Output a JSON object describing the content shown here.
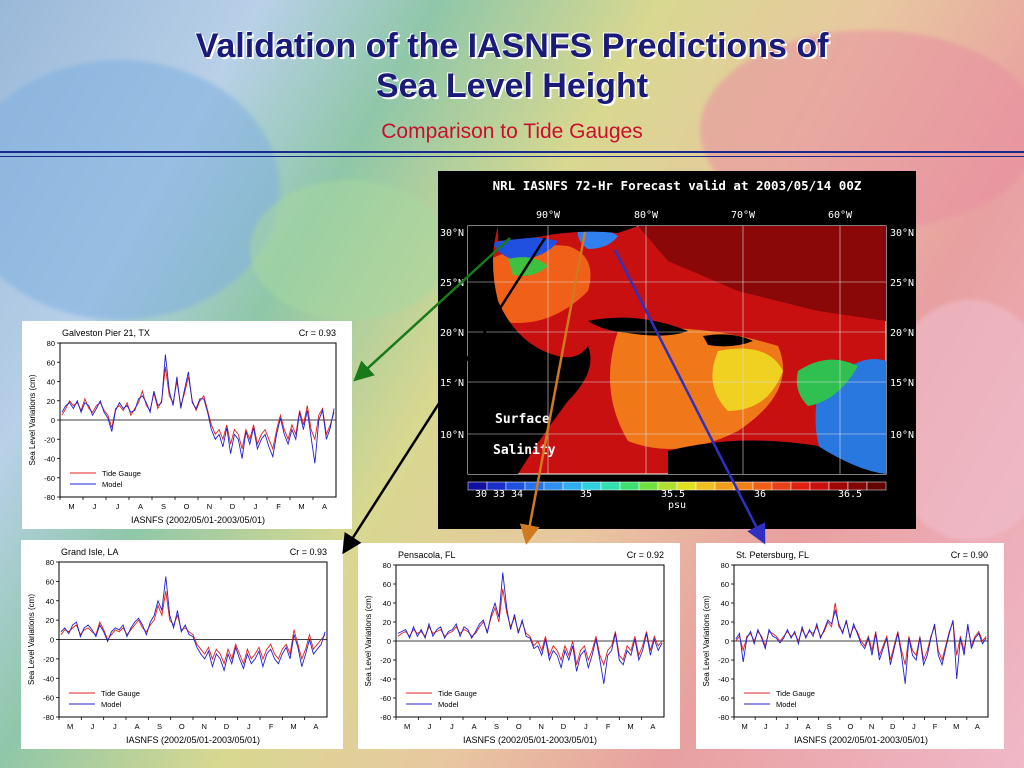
{
  "slide": {
    "title_line1": "Validation of the IASNFS Predictions of",
    "title_line2": "Sea Level Height",
    "subtitle": "Comparison to Tide Gauges"
  },
  "map": {
    "title": "NRL IASNFS 72-Hr Forecast valid at 2003/05/14 00Z",
    "lon_labels": [
      "90°W",
      "80°W",
      "70°W",
      "60°W"
    ],
    "lat_labels": [
      "30°N",
      "25°N",
      "20°N",
      "15°N",
      "10°N"
    ],
    "field_label_1": "Surface",
    "field_label_2": "Salinity",
    "colorbar_labels": [
      "30",
      "33",
      "34",
      "35",
      "35.5",
      "36",
      "36.5"
    ],
    "colorbar_unit": "psu"
  },
  "arrow_colors": {
    "galveston": "#1a7a1a",
    "grand_isle": "#000000",
    "pensacola": "#d07a20",
    "st_petersburg": "#3030c0"
  },
  "chart_data": [
    {
      "type": "line",
      "station": "Galveston Pier 21, TX",
      "cr": "Cr = 0.93",
      "ylabel": "Sea Level Variations (cm)",
      "xlabel": "IASNFS (2002/05/01-2003/05/01)",
      "ylim": [
        -80,
        80
      ],
      "yticks": [
        "80",
        "60",
        "40",
        "20",
        "0",
        "-20",
        "-40",
        "-60",
        "-80"
      ],
      "months": [
        "M",
        "J",
        "J",
        "A",
        "S",
        "O",
        "N",
        "D",
        "J",
        "F",
        "M",
        "A"
      ],
      "legend": [
        "Tide Gauge",
        "Model"
      ],
      "series": [
        {
          "name": "Tide Gauge",
          "color": "#e02020",
          "values": [
            5,
            12,
            20,
            15,
            18,
            10,
            22,
            12,
            8,
            15,
            18,
            10,
            5,
            -8,
            12,
            15,
            10,
            18,
            5,
            12,
            18,
            30,
            15,
            10,
            28,
            12,
            20,
            55,
            25,
            18,
            40,
            15,
            28,
            45,
            20,
            10,
            20,
            25,
            10,
            -5,
            -15,
            -10,
            -20,
            -5,
            -25,
            -10,
            -15,
            -30,
            -10,
            -20,
            -5,
            -25,
            -15,
            -10,
            -20,
            -30,
            -10,
            5,
            -10,
            -20,
            -5,
            -15,
            10,
            -5,
            15,
            -10,
            -20,
            5,
            12,
            -15,
            -5,
            8
          ]
        },
        {
          "name": "Model",
          "color": "#2020d0",
          "values": [
            8,
            15,
            18,
            12,
            20,
            8,
            18,
            15,
            5,
            12,
            20,
            8,
            2,
            -12,
            10,
            18,
            12,
            15,
            8,
            10,
            22,
            25,
            18,
            8,
            30,
            15,
            18,
            68,
            30,
            15,
            45,
            12,
            32,
            50,
            18,
            12,
            22,
            22,
            8,
            -10,
            -20,
            -15,
            -28,
            -8,
            -35,
            -15,
            -20,
            -40,
            -12,
            -25,
            -8,
            -30,
            -20,
            -15,
            -28,
            -38,
            -15,
            2,
            -15,
            -25,
            -10,
            -20,
            8,
            -10,
            10,
            -18,
            -45,
            0,
            10,
            -20,
            -8,
            12
          ]
        }
      ]
    },
    {
      "type": "line",
      "station": "Grand Isle, LA",
      "cr": "Cr = 0.93",
      "ylabel": "Sea Level Variations (cm)",
      "xlabel": "IASNFS (2002/05/01-2003/05/01)",
      "ylim": [
        -80,
        80
      ],
      "yticks": [
        "80",
        "60",
        "40",
        "20",
        "0",
        "-20",
        "-40",
        "-60",
        "-80"
      ],
      "months": [
        "M",
        "J",
        "J",
        "A",
        "S",
        "O",
        "N",
        "D",
        "J",
        "F",
        "M",
        "A"
      ],
      "legend": [
        "Tide Gauge",
        "Model"
      ],
      "series": [
        {
          "name": "Tide Gauge",
          "color": "#e02020",
          "values": [
            5,
            10,
            8,
            12,
            15,
            5,
            10,
            12,
            8,
            5,
            18,
            10,
            0,
            5,
            10,
            8,
            12,
            5,
            10,
            15,
            20,
            12,
            8,
            15,
            20,
            35,
            25,
            50,
            20,
            15,
            25,
            10,
            12,
            8,
            5,
            -5,
            -10,
            -15,
            -8,
            -20,
            -10,
            -15,
            -25,
            -10,
            -20,
            -5,
            -15,
            -25,
            -10,
            -20,
            -15,
            -8,
            -20,
            -10,
            -5,
            -15,
            -20,
            -10,
            -5,
            -15,
            10,
            -5,
            -20,
            -10,
            5,
            -10,
            -5,
            0,
            5
          ]
        },
        {
          "name": "Model",
          "color": "#2020d0",
          "values": [
            8,
            12,
            6,
            15,
            18,
            3,
            12,
            15,
            10,
            3,
            15,
            8,
            -2,
            8,
            12,
            10,
            15,
            3,
            12,
            18,
            22,
            15,
            5,
            18,
            25,
            40,
            30,
            65,
            25,
            12,
            30,
            8,
            15,
            5,
            3,
            -8,
            -15,
            -20,
            -12,
            -28,
            -15,
            -20,
            -32,
            -15,
            -25,
            -8,
            -20,
            -30,
            -15,
            -25,
            -20,
            -12,
            -28,
            -15,
            -10,
            -20,
            -25,
            -15,
            -8,
            -20,
            5,
            -8,
            -28,
            -15,
            0,
            -15,
            -10,
            -5,
            8
          ]
        }
      ]
    },
    {
      "type": "line",
      "station": "Pensacola, FL",
      "cr": "Cr = 0.92",
      "ylabel": "Sea Level Variations (cm)",
      "xlabel": "IASNFS (2002/05/01-2003/05/01)",
      "ylim": [
        -80,
        80
      ],
      "yticks": [
        "80",
        "60",
        "40",
        "20",
        "0",
        "-20",
        "-40",
        "-60",
        "-80"
      ],
      "months": [
        "M",
        "J",
        "J",
        "A",
        "S",
        "O",
        "N",
        "D",
        "J",
        "F",
        "M",
        "A"
      ],
      "legend": [
        "Tide Gauge",
        "Model"
      ],
      "series": [
        {
          "name": "Tide Gauge",
          "color": "#e02020",
          "values": [
            5,
            8,
            10,
            5,
            12,
            8,
            10,
            5,
            15,
            8,
            10,
            12,
            5,
            8,
            10,
            15,
            8,
            12,
            10,
            5,
            8,
            15,
            20,
            10,
            25,
            35,
            20,
            55,
            30,
            15,
            25,
            10,
            20,
            8,
            5,
            -5,
            0,
            -10,
            5,
            -15,
            -5,
            -10,
            -20,
            -5,
            -15,
            0,
            -25,
            -10,
            -5,
            -20,
            -10,
            5,
            -15,
            -25,
            -10,
            -5,
            10,
            -15,
            -20,
            -5,
            -10,
            5,
            -15,
            -5,
            10,
            -10,
            5,
            -5,
            0
          ]
        },
        {
          "name": "Model",
          "color": "#2020d0",
          "values": [
            8,
            10,
            12,
            3,
            15,
            5,
            12,
            3,
            18,
            5,
            12,
            15,
            3,
            10,
            12,
            18,
            5,
            15,
            12,
            3,
            10,
            18,
            22,
            8,
            28,
            40,
            25,
            72,
            35,
            12,
            28,
            8,
            22,
            5,
            3,
            -8,
            -5,
            -15,
            2,
            -20,
            -10,
            -15,
            -28,
            -10,
            -20,
            -5,
            -32,
            -15,
            -10,
            -28,
            -15,
            2,
            -20,
            -45,
            -15,
            -10,
            8,
            -20,
            -25,
            -10,
            -15,
            2,
            -20,
            -10,
            8,
            -15,
            2,
            -10,
            -2
          ]
        }
      ]
    },
    {
      "type": "line",
      "station": "St. Petersburg, FL",
      "cr": "Cr = 0.90",
      "ylabel": "Sea Level Variations (cm)",
      "xlabel": "IASNFS (2002/05/01-2003/05/01)",
      "ylim": [
        -80,
        80
      ],
      "yticks": [
        "80",
        "60",
        "40",
        "20",
        "0",
        "-20",
        "-40",
        "-60",
        "-80"
      ],
      "months": [
        "M",
        "J",
        "J",
        "A",
        "S",
        "O",
        "N",
        "D",
        "J",
        "F",
        "M",
        "A"
      ],
      "legend": [
        "Tide Gauge",
        "Model"
      ],
      "series": [
        {
          "name": "Tide Gauge",
          "color": "#e02020",
          "values": [
            0,
            5,
            -10,
            5,
            8,
            0,
            10,
            5,
            -5,
            10,
            8,
            5,
            0,
            5,
            10,
            5,
            8,
            0,
            12,
            5,
            10,
            8,
            15,
            5,
            10,
            20,
            15,
            40,
            15,
            10,
            20,
            5,
            15,
            10,
            0,
            -5,
            5,
            -10,
            10,
            -15,
            -5,
            5,
            -20,
            -5,
            10,
            -10,
            -25,
            5,
            -10,
            -15,
            5,
            -20,
            -10,
            5,
            15,
            -10,
            -20,
            -5,
            10,
            20,
            -15,
            5,
            -10,
            15,
            -5,
            5,
            10,
            0,
            5
          ]
        },
        {
          "name": "Model",
          "color": "#2020d0",
          "values": [
            2,
            8,
            -22,
            3,
            10,
            -3,
            12,
            3,
            -8,
            12,
            5,
            3,
            -2,
            3,
            12,
            3,
            10,
            -3,
            15,
            3,
            12,
            5,
            18,
            3,
            12,
            22,
            18,
            32,
            18,
            8,
            22,
            3,
            18,
            8,
            -3,
            -8,
            3,
            -15,
            8,
            -20,
            -8,
            3,
            -25,
            -8,
            8,
            -15,
            -45,
            3,
            -15,
            -20,
            3,
            -25,
            -15,
            3,
            18,
            -15,
            -25,
            -8,
            8,
            22,
            -40,
            3,
            -15,
            18,
            -8,
            3,
            8,
            -3,
            3
          ]
        }
      ]
    }
  ]
}
